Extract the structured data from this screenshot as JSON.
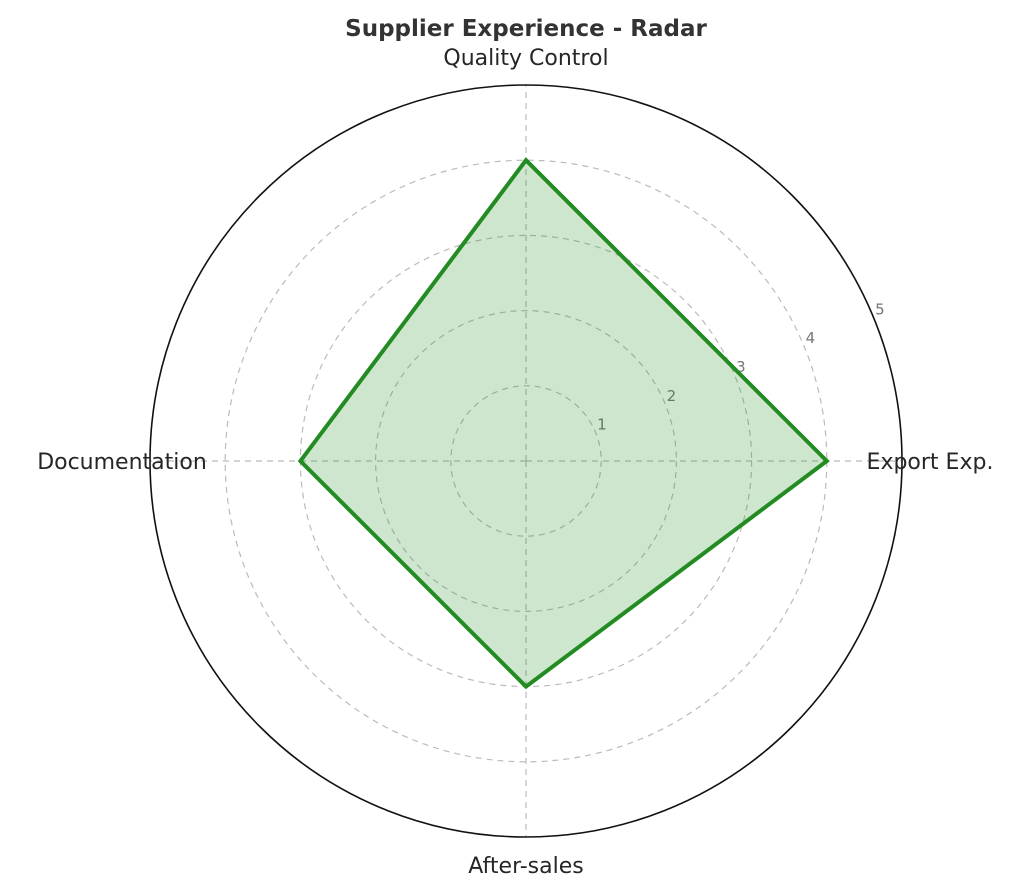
{
  "title": "Supplier Experience - Radar",
  "chart_data": {
    "type": "radar",
    "categories": [
      "Quality Control",
      "Export Exp.",
      "After-sales",
      "Documentation"
    ],
    "series": [
      {
        "name": "Supplier Experience",
        "values": [
          4,
          4,
          3,
          3
        ]
      }
    ],
    "r_ticks": [
      "1",
      "2",
      "3",
      "4",
      "5"
    ],
    "r_range": [
      0,
      5
    ],
    "tick_label_angle_deg": 22.5,
    "grid": true,
    "legend": "none",
    "colors": {
      "polygon_line": "#228B22",
      "polygon_fill": "rgba(34,139,34,0.22)",
      "grid_line": "#bbbbbb",
      "outer_circle": "#111111",
      "tick_text": "#767676",
      "label_text": "#262626",
      "title_text": "#333333",
      "background": "#ffffff"
    }
  }
}
